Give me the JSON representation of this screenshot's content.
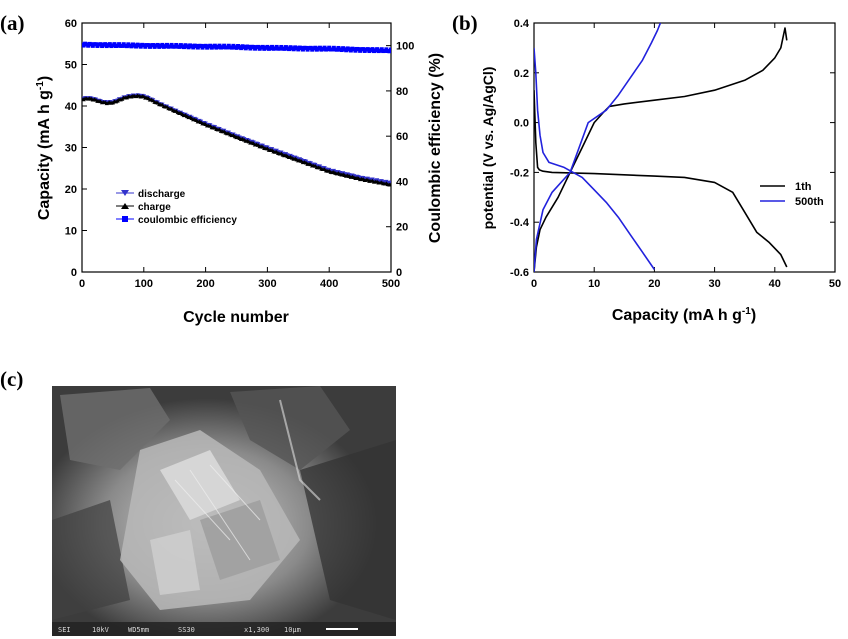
{
  "panels": {
    "a_label": "(a)",
    "b_label": "(b)",
    "c_label": "(c)"
  },
  "chart_data": [
    {
      "type": "scatter",
      "panel": "(a)",
      "xlabel": "Cycle number",
      "ylabel_main": "Capacity (mA h g",
      "ylabel_sup": "-1",
      "ylabel_close": ")",
      "y2label": "Coulombic efficiency (%)",
      "xlim": [
        0,
        500
      ],
      "ylim": [
        0,
        60
      ],
      "y2lim": [
        0,
        110
      ],
      "xticks": [
        0,
        100,
        200,
        300,
        400,
        500
      ],
      "yticks": [
        0,
        10,
        20,
        30,
        40,
        50,
        60
      ],
      "y2ticks": [
        0,
        20,
        40,
        60,
        80,
        100
      ],
      "legend_position": "lower-left",
      "series": [
        {
          "name": "discharge",
          "color": "#3333cc",
          "marker": "triangle-down",
          "axis": "left",
          "x": [
            0,
            10,
            20,
            30,
            40,
            50,
            60,
            70,
            80,
            90,
            100,
            110,
            120,
            150,
            200,
            250,
            300,
            350,
            400,
            450,
            500
          ],
          "y": [
            41.8,
            42.0,
            41.7,
            41.2,
            40.9,
            41.0,
            41.6,
            42.2,
            42.5,
            42.6,
            42.4,
            41.8,
            41.0,
            39.0,
            35.8,
            32.8,
            30.0,
            27.3,
            24.6,
            22.8,
            21.5
          ]
        },
        {
          "name": "charge",
          "color": "#000000",
          "marker": "triangle-up",
          "axis": "left",
          "x": [
            0,
            10,
            20,
            30,
            40,
            50,
            60,
            70,
            80,
            90,
            100,
            110,
            120,
            150,
            200,
            250,
            300,
            350,
            400,
            450,
            500
          ],
          "y": [
            41.6,
            41.8,
            41.5,
            41.0,
            40.7,
            40.8,
            41.4,
            42.0,
            42.3,
            42.4,
            42.2,
            41.6,
            40.8,
            38.8,
            35.5,
            32.5,
            29.6,
            26.9,
            24.2,
            22.4,
            21.0
          ]
        },
        {
          "name": "coulombic efficiency",
          "color": "#0000ff",
          "marker": "square",
          "axis": "right",
          "x": [
            0,
            50,
            100,
            150,
            200,
            250,
            300,
            350,
            400,
            450,
            500
          ],
          "y": [
            100.5,
            100.2,
            100.0,
            99.8,
            99.6,
            99.4,
            99.0,
            98.8,
            98.6,
            98.2,
            97.8
          ]
        }
      ]
    },
    {
      "type": "line",
      "panel": "(b)",
      "xlabel_main": "Capacity (mA h g",
      "xlabel_sup": "-1",
      "xlabel_close": ")",
      "ylabel": "potential (V vs. Ag/AgCl)",
      "xlim": [
        0,
        50
      ],
      "ylim": [
        -0.6,
        0.4
      ],
      "xticks": [
        0,
        10,
        20,
        30,
        40,
        50
      ],
      "yticks": [
        -0.6,
        -0.4,
        -0.2,
        0.0,
        0.2,
        0.4
      ],
      "legend_position": "center-right",
      "series": [
        {
          "name": "1th",
          "color": "#000000",
          "segments": [
            {
              "x": [
                0,
                0.3,
                0.6,
                0.9,
                1.5,
                3,
                10,
                20,
                25,
                30,
                33,
                35,
                37,
                39,
                41,
                42
              ],
              "y": [
                0.13,
                -0.08,
                -0.18,
                -0.19,
                -0.195,
                -0.2,
                -0.205,
                -0.215,
                -0.22,
                -0.24,
                -0.28,
                -0.36,
                -0.44,
                -0.48,
                -0.53,
                -0.58
              ]
            },
            {
              "x": [
                0,
                0.4,
                1,
                2,
                4,
                6,
                8,
                10,
                11.5,
                12.5,
                15,
                20,
                25,
                30,
                35,
                38,
                40,
                41,
                41.7,
                42
              ],
              "y": [
                -0.6,
                -0.5,
                -0.43,
                -0.38,
                -0.3,
                -0.2,
                -0.1,
                0.0,
                0.04,
                0.065,
                0.075,
                0.09,
                0.105,
                0.13,
                0.17,
                0.21,
                0.26,
                0.3,
                0.38,
                0.33
              ]
            }
          ]
        },
        {
          "name": "500th",
          "color": "#2222dd",
          "segments": [
            {
              "x": [
                0,
                0.3,
                0.6,
                1,
                1.5,
                2.5,
                5,
                8,
                10,
                12,
                14,
                16,
                18,
                20
              ],
              "y": [
                0.3,
                0.2,
                0.05,
                -0.05,
                -0.12,
                -0.16,
                -0.18,
                -0.22,
                -0.27,
                -0.32,
                -0.38,
                -0.45,
                -0.52,
                -0.59
              ]
            },
            {
              "x": [
                0,
                0.4,
                1.5,
                3,
                6,
                9,
                12,
                14,
                16,
                18,
                19.5,
                20.5,
                21
              ],
              "y": [
                -0.6,
                -0.47,
                -0.35,
                -0.28,
                -0.2,
                0.0,
                0.05,
                0.11,
                0.18,
                0.25,
                0.32,
                0.37,
                0.4
              ]
            }
          ]
        }
      ]
    }
  ],
  "sem": {
    "footer_a": "SEI",
    "footer_b": "10kV",
    "footer_c": "WD5mm",
    "footer_d": "SS30",
    "footer_mag": "x1,300",
    "footer_scale": "10μm"
  }
}
